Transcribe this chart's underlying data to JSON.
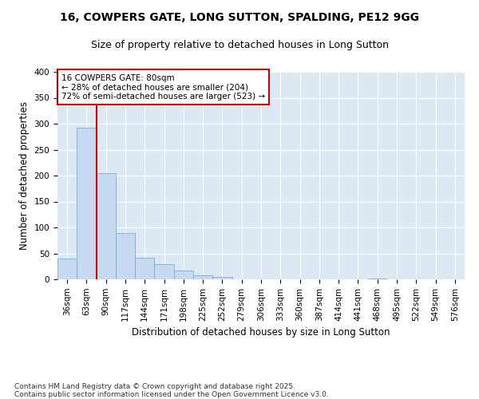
{
  "title_line1": "16, COWPERS GATE, LONG SUTTON, SPALDING, PE12 9GG",
  "title_line2": "Size of property relative to detached houses in Long Sutton",
  "xlabel": "Distribution of detached houses by size in Long Sutton",
  "ylabel": "Number of detached properties",
  "footnote": "Contains HM Land Registry data © Crown copyright and database right 2025.\nContains public sector information licensed under the Open Government Licence v3.0.",
  "categories": [
    "36sqm",
    "63sqm",
    "90sqm",
    "117sqm",
    "144sqm",
    "171sqm",
    "198sqm",
    "225sqm",
    "252sqm",
    "279sqm",
    "306sqm",
    "333sqm",
    "360sqm",
    "387sqm",
    "414sqm",
    "441sqm",
    "468sqm",
    "495sqm",
    "522sqm",
    "549sqm",
    "576sqm"
  ],
  "values": [
    40,
    293,
    204,
    90,
    42,
    30,
    17,
    8,
    5,
    0,
    0,
    0,
    0,
    0,
    0,
    0,
    2,
    0,
    0,
    0,
    0
  ],
  "bar_color": "#c6d9f0",
  "bar_edge_color": "#7aabdb",
  "vline_color": "#cc0000",
  "vline_x_index": 1.5,
  "annotation_text": "16 COWPERS GATE: 80sqm\n← 28% of detached houses are smaller (204)\n72% of semi-detached houses are larger (523) →",
  "annotation_box_edgecolor": "#cc0000",
  "ylim": [
    0,
    400
  ],
  "yticks": [
    0,
    50,
    100,
    150,
    200,
    250,
    300,
    350,
    400
  ],
  "plot_bg_color": "#dce9f5",
  "grid_color": "#ffffff",
  "fig_bg_color": "#ffffff",
  "title_fontsize": 10,
  "subtitle_fontsize": 9,
  "axis_label_fontsize": 8.5,
  "tick_fontsize": 7.5,
  "annotation_fontsize": 7.5,
  "footnote_fontsize": 6.5
}
